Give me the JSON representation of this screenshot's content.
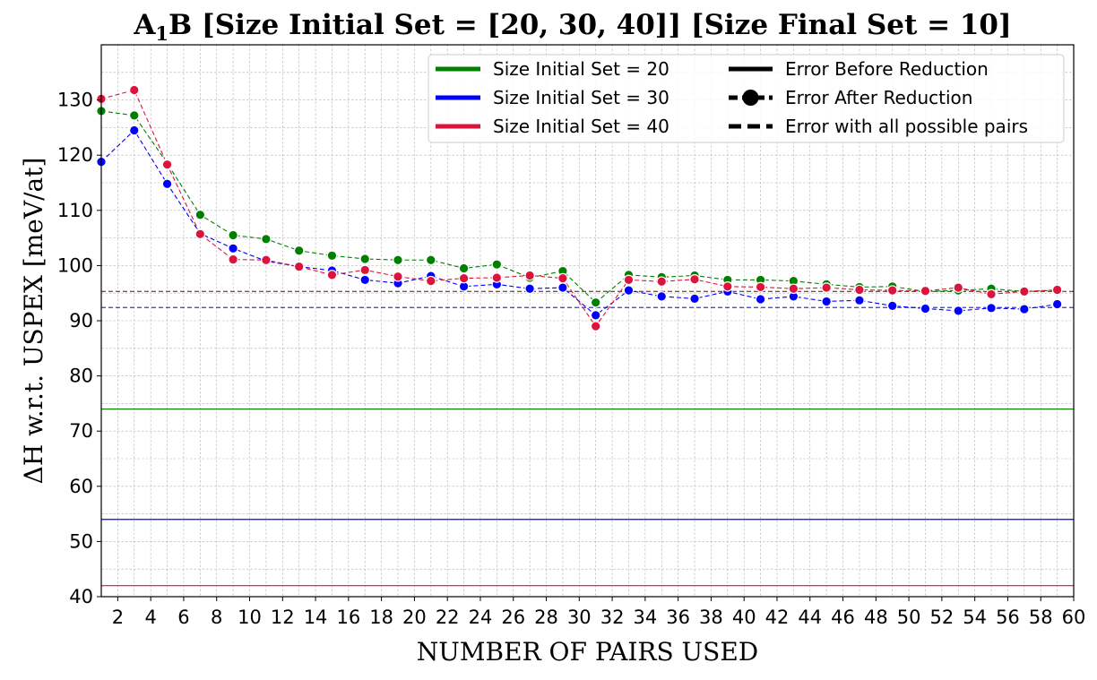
{
  "chart_data": {
    "type": "line",
    "title_main": "A",
    "title_sub": "1",
    "title_rest": "B [Size Initial Set = [20, 30, 40]] [Size Final Set = 10]",
    "xlabel": "NUMBER OF PAIRS USED",
    "ylabel": "ΔH w.r.t. USPEX [meV/at]",
    "xlim": [
      1,
      60
    ],
    "ylim": [
      40,
      140
    ],
    "xticks": [
      2,
      4,
      6,
      8,
      10,
      12,
      14,
      16,
      18,
      20,
      22,
      24,
      26,
      28,
      30,
      32,
      34,
      36,
      38,
      40,
      42,
      44,
      46,
      48,
      50,
      52,
      54,
      56,
      58,
      60
    ],
    "yticks": [
      40,
      50,
      60,
      70,
      80,
      90,
      100,
      110,
      120,
      130
    ],
    "grid": true,
    "legend_position": "top-right",
    "series": [
      {
        "name": "Size Initial Set = 20",
        "color": "#008000",
        "x": [
          1,
          3,
          5,
          7,
          9,
          11,
          13,
          15,
          17,
          19,
          21,
          23,
          25,
          27,
          29,
          31,
          33,
          35,
          37,
          39,
          41,
          43,
          45,
          47,
          49,
          51,
          53,
          55,
          57,
          59
        ],
        "values": [
          128,
          127.2,
          118.5,
          109.2,
          105.5,
          104.8,
          102.7,
          101.8,
          101.2,
          101,
          101,
          99.5,
          100.2,
          97.8,
          99,
          93.3,
          98.3,
          97.9,
          98.2,
          97.4,
          97.4,
          97.2,
          96.6,
          96.1,
          96.2,
          95.3,
          95.5,
          95.8,
          95.3,
          95.5
        ],
        "before_reduction": 74,
        "all_pairs": 95.3
      },
      {
        "name": "Size Initial Set = 30",
        "color": "#0000ff",
        "x": [
          1,
          3,
          5,
          7,
          9,
          11,
          13,
          15,
          17,
          19,
          21,
          23,
          25,
          27,
          29,
          31,
          33,
          35,
          37,
          39,
          41,
          43,
          45,
          47,
          49,
          51,
          53,
          55,
          57,
          59
        ],
        "values": [
          118.8,
          124.5,
          114.8,
          105.8,
          103.1,
          100.8,
          99.8,
          99.1,
          97.4,
          96.8,
          98.1,
          96.2,
          96.6,
          95.8,
          96,
          91,
          95.5,
          94.4,
          94,
          95.3,
          93.9,
          94.4,
          93.5,
          93.7,
          92.7,
          92.2,
          91.8,
          92.3,
          92.1,
          93
        ],
        "before_reduction": 54,
        "all_pairs": 92.4
      },
      {
        "name": "Size Initial Set = 40",
        "color": "#dc143c",
        "x": [
          1,
          3,
          5,
          7,
          9,
          11,
          13,
          15,
          17,
          19,
          21,
          23,
          25,
          27,
          29,
          31,
          33,
          35,
          37,
          39,
          41,
          43,
          45,
          47,
          49,
          51,
          53,
          55,
          57,
          59
        ],
        "values": [
          130.2,
          131.8,
          118.3,
          105.7,
          101.1,
          101,
          99.8,
          98.3,
          99.2,
          98,
          97.2,
          97.7,
          97.8,
          98.2,
          97.7,
          89,
          97.4,
          97.1,
          97.5,
          96.2,
          96.1,
          95.8,
          96,
          95.6,
          95.5,
          95.4,
          96,
          94.8,
          95.3,
          95.6
        ],
        "before_reduction": 42,
        "all_pairs": 95.3
      }
    ],
    "legend_styles": [
      "Error Before Reduction",
      "Error After Reduction",
      "Error with all possible pairs"
    ]
  }
}
